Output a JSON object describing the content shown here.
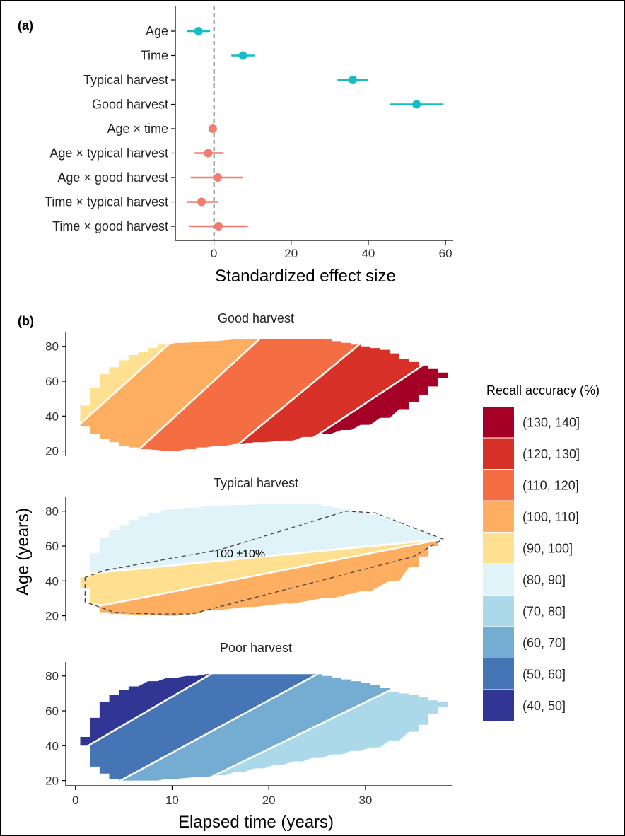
{
  "panel_a": {
    "label": "(a)",
    "xlabel": "Standardized effect size"
  },
  "panel_b": {
    "label": "(b)",
    "ylabel": "Age (years)",
    "xlabel": "Elapsed time (years)",
    "annotation": "100 ±10%",
    "legend_title": "Recall accuracy (%)"
  },
  "chart_data": [
    {
      "type": "scatter",
      "subtype": "forest-plot",
      "xlabel": "Standardized effect size",
      "xlim": [
        -10,
        62
      ],
      "xticks": [
        0,
        20,
        40,
        60
      ],
      "reference_line_x": 0,
      "grid": false,
      "colors": {
        "main_effect": "#17BDC5",
        "interaction": "#F17C6F"
      },
      "terms": [
        {
          "label": "Age",
          "estimate": -4,
          "lower": -7,
          "upper": -1,
          "group": "main_effect"
        },
        {
          "label": "Time",
          "estimate": 7.5,
          "lower": 4.5,
          "upper": 10.5,
          "group": "main_effect"
        },
        {
          "label": "Typical harvest",
          "estimate": 36,
          "lower": 32,
          "upper": 40,
          "group": "main_effect"
        },
        {
          "label": "Good harvest",
          "estimate": 52.5,
          "lower": 45.5,
          "upper": 59.5,
          "group": "main_effect"
        },
        {
          "label": "Age × time",
          "estimate": -0.3,
          "lower": -1,
          "upper": 0.4,
          "group": "interaction"
        },
        {
          "label": "Age × typical harvest",
          "estimate": -1.5,
          "lower": -5,
          "upper": 2.5,
          "group": "interaction"
        },
        {
          "label": "Age × good harvest",
          "estimate": 1,
          "lower": -6,
          "upper": 7.5,
          "group": "interaction"
        },
        {
          "label": "Time × typical harvest",
          "estimate": -3.2,
          "lower": -7,
          "upper": 1,
          "group": "interaction"
        },
        {
          "label": "Time × good harvest",
          "estimate": 1.2,
          "lower": -6.5,
          "upper": 8.8,
          "group": "interaction"
        }
      ]
    },
    {
      "type": "heatmap",
      "subtype": "binned-contour",
      "xlabel": "Elapsed time (years)",
      "ylabel": "Age (years)",
      "xlim": [
        -1,
        39
      ],
      "xticks": [
        0,
        10,
        20,
        30
      ],
      "yticks": [
        20,
        40,
        60,
        80
      ],
      "legend_title": "Recall accuracy (%)",
      "legend_position": "right",
      "bins": [
        {
          "label": "(130, 140]",
          "color": "#A50026"
        },
        {
          "label": "(120, 130]",
          "color": "#D73027"
        },
        {
          "label": "(110, 120]",
          "color": "#F46D43"
        },
        {
          "label": "(100, 110]",
          "color": "#FDAE61"
        },
        {
          "label": "(90, 100]",
          "color": "#FEE090"
        },
        {
          "label": "(80, 90]",
          "color": "#E0F3F8"
        },
        {
          "label": "(70, 80]",
          "color": "#ABD9E9"
        },
        {
          "label": "(60, 70]",
          "color": "#74ADD1"
        },
        {
          "label": "(50, 60]",
          "color": "#4575B4"
        },
        {
          "label": "(40, 50]",
          "color": "#313695"
        }
      ],
      "panels": [
        {
          "title": "Good harvest",
          "ylim": [
            17,
            88
          ],
          "envelope": {
            "top": [
              [
                1,
                46
              ],
              [
                2,
                56
              ],
              [
                3,
                64
              ],
              [
                4,
                68
              ],
              [
                5,
                72
              ],
              [
                6,
                75
              ],
              [
                7,
                77
              ],
              [
                8,
                79
              ],
              [
                9,
                81
              ],
              [
                11,
                82
              ],
              [
                14,
                83
              ],
              [
                17,
                84
              ],
              [
                26,
                84
              ],
              [
                27,
                83
              ],
              [
                28,
                82
              ],
              [
                29,
                81
              ],
              [
                30,
                80
              ],
              [
                31,
                79
              ],
              [
                32,
                78
              ],
              [
                33,
                76
              ],
              [
                34,
                73
              ],
              [
                35,
                71
              ],
              [
                36,
                69
              ],
              [
                37,
                67
              ],
              [
                38,
                65
              ]
            ],
            "bottom": [
              [
                1,
                34
              ],
              [
                2,
                30
              ],
              [
                3,
                27
              ],
              [
                4,
                25
              ],
              [
                5,
                23
              ],
              [
                6,
                22
              ],
              [
                7,
                21
              ],
              [
                10,
                20
              ],
              [
                12,
                21
              ],
              [
                13,
                22
              ],
              [
                15,
                23
              ],
              [
                17,
                24
              ],
              [
                19,
                25
              ],
              [
                22,
                26
              ],
              [
                24,
                28
              ],
              [
                26,
                30
              ],
              [
                28,
                32
              ],
              [
                30,
                35
              ],
              [
                32,
                39
              ],
              [
                34,
                44
              ],
              [
                35,
                48
              ],
              [
                36,
                52
              ],
              [
                37,
                57
              ],
              [
                38,
                62
              ]
            ]
          },
          "bands": [
            {
              "bin": "(90, 100]",
              "color": "#FEE090",
              "lower": [
                [
                  1,
                  38
                ],
                [
                  9,
                  78
                ]
              ],
              "upper": null
            },
            {
              "bin": "(100, 110]",
              "color": "#FDAE61",
              "lower": [
                [
                  6,
                  18
                ],
                [
                  19,
                  84
                ]
              ],
              "upper": [
                [
                  1,
                  38
                ],
                [
                  9,
                  78
                ]
              ]
            },
            {
              "bin": "(110, 120]",
              "color": "#F46D43",
              "lower": [
                [
                  16,
                  20
                ],
                [
                  30,
                  84
                ]
              ],
              "upper": [
                [
                  6,
                  18
                ],
                [
                  19,
                  84
                ]
              ]
            },
            {
              "bin": "(120, 130]",
              "color": "#D73027",
              "lower": [
                [
                  28,
                  40
                ],
                [
                  34,
                  62
                ]
              ],
              "upper": [
                [
                  16,
                  20
                ],
                [
                  30,
                  84
                ]
              ]
            },
            {
              "bin": "(130, 140]",
              "color": "#A50026",
              "lower": null,
              "upper": [
                [
                  28,
                  40
                ],
                [
                  34,
                  62
                ]
              ]
            }
          ]
        },
        {
          "title": "Typical harvest",
          "ylim": [
            17,
            88
          ],
          "annotation": "100 ±10%",
          "envelope": {
            "top": [
              [
                1,
                42
              ],
              [
                2,
                56
              ],
              [
                3,
                65
              ],
              [
                4,
                69
              ],
              [
                5,
                72
              ],
              [
                6,
                75
              ],
              [
                7,
                77
              ],
              [
                8,
                79
              ],
              [
                10,
                81
              ],
              [
                12,
                82
              ],
              [
                14,
                83
              ],
              [
                20,
                84
              ],
              [
                25,
                84
              ],
              [
                26,
                83
              ],
              [
                27,
                82
              ],
              [
                28,
                81
              ],
              [
                29,
                80
              ],
              [
                30,
                79
              ],
              [
                31,
                78
              ],
              [
                32,
                76
              ],
              [
                33,
                74
              ],
              [
                34,
                72
              ],
              [
                35,
                70
              ],
              [
                36,
                68
              ],
              [
                38,
                64
              ]
            ],
            "bottom": [
              [
                1,
                36
              ],
              [
                2,
                27
              ],
              [
                3,
                22
              ],
              [
                4,
                21
              ],
              [
                10,
                20
              ],
              [
                12,
                21
              ],
              [
                14,
                23
              ],
              [
                18,
                25
              ],
              [
                22,
                27
              ],
              [
                26,
                30
              ],
              [
                30,
                34
              ],
              [
                33,
                40
              ],
              [
                35,
                48
              ],
              [
                36,
                54
              ],
              [
                37,
                60
              ],
              [
                38,
                64
              ]
            ]
          },
          "bands": [
            {
              "bin": "(80, 90]",
              "color": "#E0F3F8",
              "lower": [
                [
                  1,
                  44
                ],
                [
                  38,
                  64
                ]
              ],
              "upper": null
            },
            {
              "bin": "(90, 100]",
              "color": "#FEE090",
              "lower": [
                [
                  1,
                  24
                ],
                [
                  38,
                  64
                ]
              ],
              "upper": [
                [
                  1,
                  44
                ],
                [
                  38,
                  64
                ]
              ]
            },
            {
              "bin": "(100, 110]",
              "color": "#FDAE61",
              "lower": null,
              "upper": [
                [
                  1,
                  24
                ],
                [
                  38,
                  64
                ]
              ]
            }
          ],
          "dashed_outline": [
            [
              1,
              42
            ],
            [
              3,
              46
            ],
            [
              15,
              58
            ],
            [
              28,
              80
            ],
            [
              31,
              79
            ],
            [
              38,
              64
            ],
            [
              35,
              54
            ],
            [
              12,
              21
            ],
            [
              8,
              21
            ],
            [
              4,
              22
            ],
            [
              1,
              28
            ]
          ]
        },
        {
          "title": "Poor harvest",
          "ylim": [
            17,
            88
          ],
          "envelope": {
            "top": [
              [
                1,
                45
              ],
              [
                2,
                56
              ],
              [
                3,
                65
              ],
              [
                4,
                69
              ],
              [
                5,
                72
              ],
              [
                6,
                74
              ],
              [
                8,
                77
              ],
              [
                10,
                79
              ],
              [
                12,
                80
              ],
              [
                14,
                81
              ],
              [
                25,
                81
              ],
              [
                26,
                80
              ],
              [
                27,
                79
              ],
              [
                28,
                78
              ],
              [
                29,
                77
              ],
              [
                30,
                76
              ],
              [
                31,
                75
              ],
              [
                32,
                73
              ],
              [
                33,
                71
              ],
              [
                34,
                70
              ],
              [
                35,
                69
              ],
              [
                36,
                68
              ],
              [
                37,
                66
              ],
              [
                38,
                65
              ]
            ],
            "bottom": [
              [
                1,
                40
              ],
              [
                2,
                28
              ],
              [
                3,
                24
              ],
              [
                4,
                21
              ],
              [
                5,
                20
              ],
              [
                8,
                20
              ],
              [
                10,
                21
              ],
              [
                13,
                22
              ],
              [
                15,
                23
              ],
              [
                17,
                25
              ],
              [
                19,
                27
              ],
              [
                21,
                29
              ],
              [
                23,
                31
              ],
              [
                25,
                33
              ],
              [
                27,
                35
              ],
              [
                29,
                37
              ],
              [
                31,
                39
              ],
              [
                33,
                43
              ],
              [
                35,
                48
              ],
              [
                36,
                52
              ],
              [
                37,
                58
              ],
              [
                38,
                62
              ]
            ]
          },
          "bands": [
            {
              "bin": "(40, 50]",
              "color": "#313695",
              "lower": [
                [
                  1,
                  39
                ],
                [
                  14,
                  81
                ]
              ],
              "upper": null
            },
            {
              "bin": "(50, 60]",
              "color": "#4575B4",
              "lower": [
                [
                  4,
                  18
                ],
                [
                  26,
                  84
                ]
              ],
              "upper": [
                [
                  1,
                  39
                ],
                [
                  14,
                  81
                ]
              ]
            },
            {
              "bin": "(60, 70]",
              "color": "#74ADD1",
              "lower": [
                [
                  17,
                  30
                ],
                [
                  33,
                  73
                ]
              ],
              "upper": [
                [
                  4,
                  18
                ],
                [
                  26,
                  84
                ]
              ]
            },
            {
              "bin": "(70, 80]",
              "color": "#ABD9E9",
              "lower": null,
              "upper": [
                [
                  17,
                  30
                ],
                [
                  33,
                  73
                ]
              ]
            }
          ]
        }
      ]
    }
  ]
}
